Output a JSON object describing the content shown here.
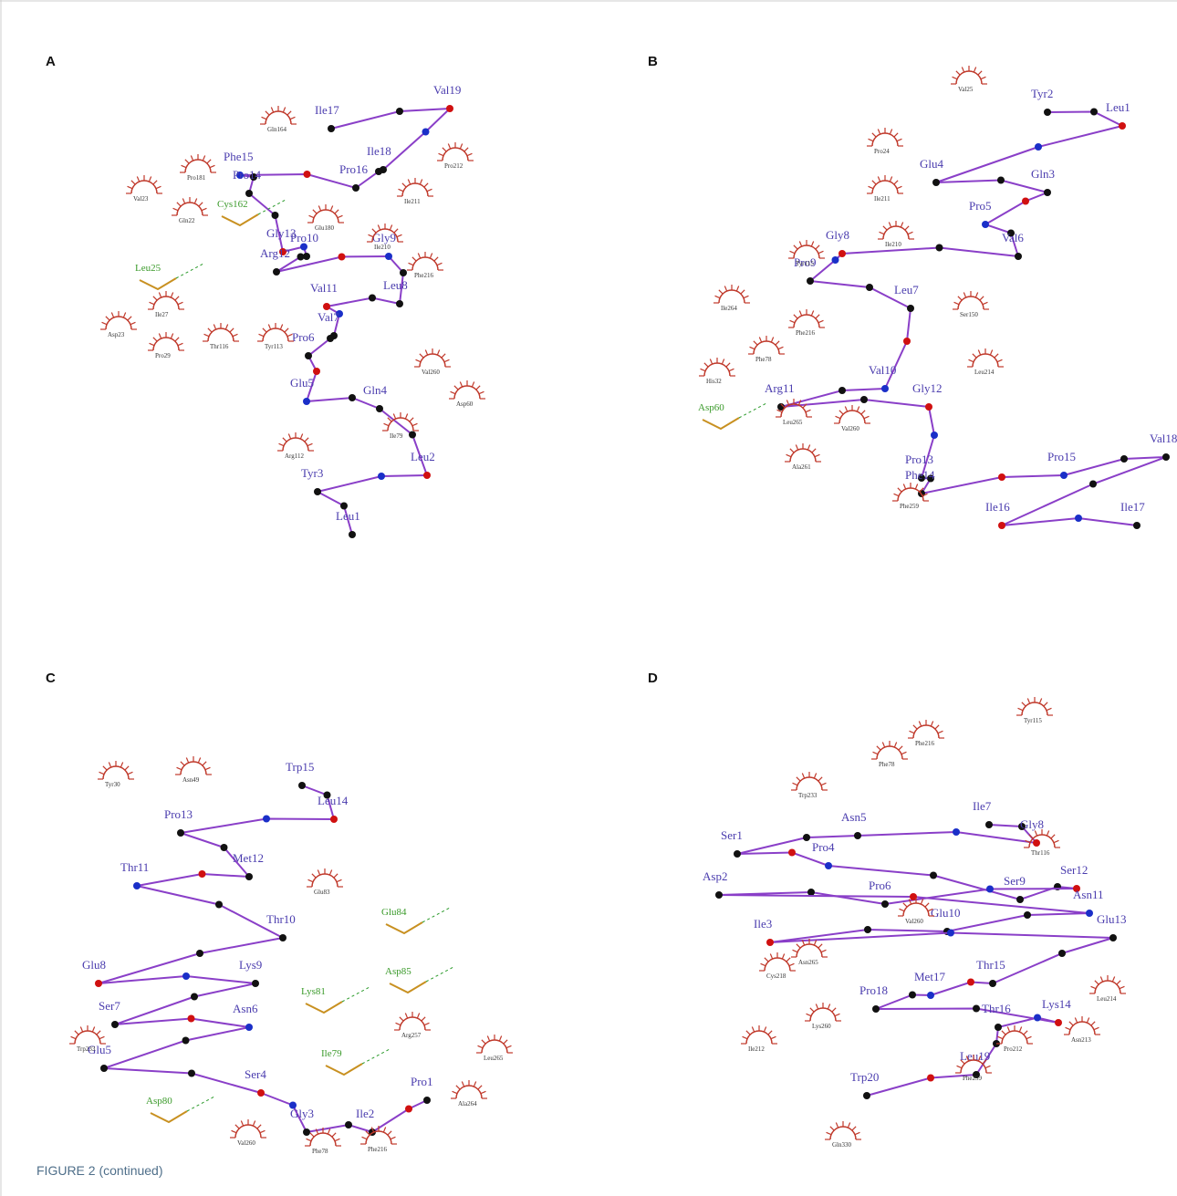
{
  "panels": [
    {
      "letter": "A",
      "ligand_residues": [
        "Ile17",
        "Val19",
        "Ile18",
        "Pro16",
        "Phe15",
        "Pro14",
        "Gly13",
        "Pro10",
        "Arg12",
        "Gly9",
        "Leu8",
        "Val11",
        "Val7",
        "Pro6",
        "Glu5",
        "Gln4",
        "Leu2",
        "Tyr3",
        "Leu1"
      ],
      "interacting_residues": [
        "Cys162",
        "Leu25"
      ],
      "contact_residues": [
        "Gln164",
        "Pro181",
        "Val23",
        "Gln22",
        "Ile27",
        "Asp23",
        "Pro29",
        "Thr116",
        "Tyr113",
        "Glu180",
        "Ile210",
        "Phe216",
        "Pro212",
        "Ile211",
        "Val260",
        "Asp60",
        "Ile79",
        "Arg112"
      ]
    },
    {
      "letter": "B",
      "ligand_residues": [
        "Tyr2",
        "Leu1",
        "Glu4",
        "Gln3",
        "Pro5",
        "Val6",
        "Gly8",
        "Pro9",
        "Leu7",
        "Val10",
        "Arg11",
        "Gly12",
        "Pro13",
        "Phe14",
        "Pro15",
        "Val18",
        "Ile16",
        "Ile17"
      ],
      "interacting_residues": [
        "Asp60"
      ],
      "contact_residues": [
        "Val25",
        "Pro24",
        "Ile211",
        "Ile210",
        "Tyr115",
        "Ile264",
        "Ser150",
        "Phe216",
        "Phe78",
        "His32",
        "Leu214",
        "Leu265",
        "Val260",
        "Ala261",
        "Phe259"
      ]
    },
    {
      "letter": "C",
      "ligand_residues": [
        "Trp15",
        "Leu14",
        "Pro13",
        "Met12",
        "Thr11",
        "Thr10",
        "Glu8",
        "Lys9",
        "Ser7",
        "Asn6",
        "Glu5",
        "Ser4",
        "Gly3",
        "Ile2",
        "Pro1"
      ],
      "interacting_residues": [
        "Glu84",
        "Lys81",
        "Asp85",
        "Ile79",
        "Asp80"
      ],
      "contact_residues": [
        "Tyr30",
        "Asn49",
        "Glu83",
        "Arg257",
        "Trp233",
        "Leu265",
        "Ala264",
        "Val260",
        "Phe78",
        "Phe216"
      ]
    },
    {
      "letter": "D",
      "ligand_residues": [
        "Ile7",
        "Gly8",
        "Asn5",
        "Ser1",
        "Pro4",
        "Ser9",
        "Ser12",
        "Pro6",
        "Asp2",
        "Asn11",
        "Glu10",
        "Ile3",
        "Glu13",
        "Thr15",
        "Met17",
        "Pro18",
        "Lys14",
        "Thr16",
        "Leu19",
        "Trp20"
      ],
      "interacting_residues": [],
      "contact_residues": [
        "Tyr115",
        "Phe216",
        "Phe78",
        "Trp233",
        "Thr116",
        "Val260",
        "Asn265",
        "Cys218",
        "Lys260",
        "Ile212",
        "Leu214",
        "Asn213",
        "Pro212",
        "Phe259",
        "Gln330"
      ]
    }
  ],
  "caption": "FIGURE 2 (continued)"
}
